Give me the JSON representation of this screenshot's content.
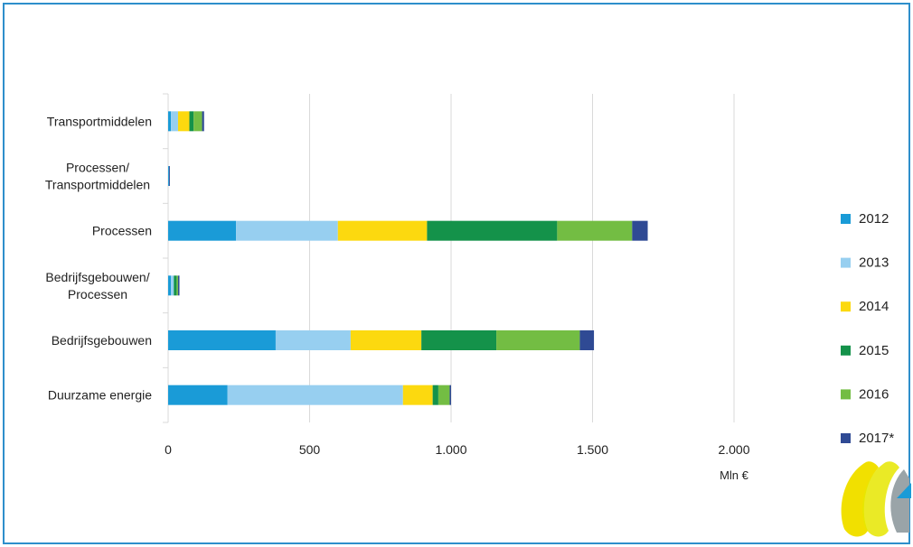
{
  "chart_data": {
    "type": "bar",
    "orientation": "horizontal",
    "stacked": true,
    "categories": [
      "Duurzame energie",
      "Bedrijfsgebouwen",
      "Bedrijfsgebouwen/\nProcessen",
      "Processen",
      "Processen/\nTransportmiddelen",
      "Transportmiddelen"
    ],
    "series": [
      {
        "name": "2012",
        "color": "#1a9bd7",
        "values": [
          210,
          380,
          10,
          240,
          3,
          10
        ]
      },
      {
        "name": "2013",
        "color": "#97cff0",
        "values": [
          620,
          265,
          10,
          360,
          0,
          25
        ]
      },
      {
        "name": "2014",
        "color": "#fcd90f",
        "values": [
          105,
          250,
          0,
          315,
          0,
          40
        ]
      },
      {
        "name": "2015",
        "color": "#14924a",
        "values": [
          20,
          265,
          10,
          460,
          0,
          15
        ]
      },
      {
        "name": "2016",
        "color": "#73bd43",
        "values": [
          40,
          295,
          5,
          265,
          0,
          30
        ]
      },
      {
        "name": "2017*",
        "color": "#2f4a94",
        "values": [
          5,
          50,
          5,
          55,
          3,
          7
        ]
      }
    ],
    "xlim": [
      0,
      2000
    ],
    "xticks": [
      "0",
      "500",
      "1.000",
      "1.500",
      "2.000"
    ],
    "xticks_values": [
      0,
      500,
      1000,
      1500,
      2000
    ],
    "xlabel": "Mln €",
    "grid": true,
    "legend": "right"
  }
}
